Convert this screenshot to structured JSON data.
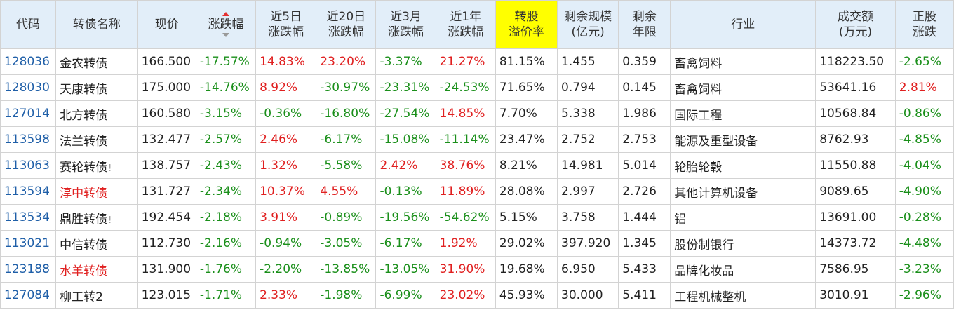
{
  "colors": {
    "header_bg": "#e2eef9",
    "highlight": "#ffff00",
    "up": "#e02020",
    "down": "#1a8f1a",
    "code": "#1f5fa8"
  },
  "headers": {
    "code": "代码",
    "name": "转债名称",
    "price": "现价",
    "change": "涨跌幅",
    "d5_line1": "近5日",
    "d5_line2": "涨跌幅",
    "d20_line1": "近20日",
    "d20_line2": "涨跌幅",
    "m3_line1": "近3月",
    "m3_line2": "涨跌幅",
    "y1_line1": "近1年",
    "y1_line2": "涨跌幅",
    "premium_line1": "转股",
    "premium_line2": "溢价率",
    "scale_line1": "剩余规模",
    "scale_line2": "(亿元)",
    "term_line1": "剩余",
    "term_line2": "年限",
    "industry": "行业",
    "volume_line1": "成交额",
    "volume_line2": "(万元)",
    "stock_line1": "正股",
    "stock_line2": "涨跌"
  },
  "sort": {
    "column": "涨跌幅",
    "icon": "sort-arrows-icon"
  },
  "rows": [
    {
      "code": "128036",
      "name": "金农转债",
      "flag": "",
      "price": "166.500",
      "change": "-17.57%",
      "d5": "14.83%",
      "d20": "23.20%",
      "m3": "-3.37%",
      "y1": "21.27%",
      "premium": "81.15%",
      "scale": "1.455",
      "term": "0.359",
      "industry": "畜禽饲料",
      "volume": "118223.50",
      "stock": "-2.65%"
    },
    {
      "code": "128030",
      "name": "天康转债",
      "flag": "",
      "price": "175.000",
      "change": "-14.76%",
      "d5": "8.92%",
      "d20": "-30.97%",
      "m3": "-23.31%",
      "y1": "-24.53%",
      "premium": "71.65%",
      "scale": "0.794",
      "term": "0.145",
      "industry": "畜禽饲料",
      "volume": "53641.16",
      "stock": "2.81%"
    },
    {
      "code": "127014",
      "name": "北方转债",
      "flag": "",
      "price": "160.580",
      "change": "-3.15%",
      "d5": "-0.36%",
      "d20": "-16.80%",
      "m3": "-27.54%",
      "y1": "14.85%",
      "premium": "7.70%",
      "scale": "5.338",
      "term": "1.986",
      "industry": "国际工程",
      "volume": "10568.84",
      "stock": "-0.86%"
    },
    {
      "code": "113598",
      "name": "法兰转债",
      "flag": "",
      "price": "132.477",
      "change": "-2.57%",
      "d5": "2.46%",
      "d20": "-6.17%",
      "m3": "-15.08%",
      "y1": "-11.14%",
      "premium": "23.47%",
      "scale": "2.752",
      "term": "2.753",
      "industry": "能源及重型设备",
      "volume": "8762.93",
      "stock": "-4.85%"
    },
    {
      "code": "113063",
      "name": "赛轮转债",
      "flag": "!",
      "price": "138.757",
      "change": "-2.43%",
      "d5": "1.32%",
      "d20": "-5.58%",
      "m3": "2.42%",
      "y1": "38.76%",
      "premium": "8.21%",
      "scale": "14.981",
      "term": "5.014",
      "industry": "轮胎轮毂",
      "volume": "11550.88",
      "stock": "-4.04%"
    },
    {
      "code": "113594",
      "name": "淳中转债",
      "flag": "",
      "price": "131.727",
      "change": "-2.34%",
      "d5": "10.37%",
      "d20": "4.55%",
      "m3": "-0.13%",
      "y1": "11.89%",
      "premium": "28.08%",
      "scale": "2.997",
      "term": "2.726",
      "industry": "其他计算机设备",
      "volume": "9089.65",
      "stock": "-4.90%"
    },
    {
      "code": "113534",
      "name": "鼎胜转债",
      "flag": "!",
      "price": "192.454",
      "change": "-2.18%",
      "d5": "3.91%",
      "d20": "-0.89%",
      "m3": "-19.56%",
      "y1": "-54.62%",
      "premium": "5.15%",
      "scale": "3.758",
      "term": "1.444",
      "industry": "铝",
      "volume": "13691.00",
      "stock": "-0.28%"
    },
    {
      "code": "113021",
      "name": "中信转债",
      "flag": "",
      "price": "112.730",
      "change": "-2.16%",
      "d5": "-0.94%",
      "d20": "-3.05%",
      "m3": "-6.17%",
      "y1": "1.92%",
      "premium": "29.02%",
      "scale": "397.920",
      "term": "1.345",
      "industry": "股份制银行",
      "volume": "14373.72",
      "stock": "-4.48%"
    },
    {
      "code": "123188",
      "name": "水羊转债",
      "flag": "",
      "price": "131.900",
      "change": "-1.76%",
      "d5": "-2.20%",
      "d20": "-13.85%",
      "m3": "-13.05%",
      "y1": "31.90%",
      "premium": "19.68%",
      "scale": "6.950",
      "term": "5.433",
      "industry": "品牌化妆品",
      "volume": "7586.95",
      "stock": "-3.23%"
    },
    {
      "code": "127084",
      "name": "柳工转2",
      "flag": "",
      "price": "123.015",
      "change": "-1.71%",
      "d5": "2.33%",
      "d20": "-1.98%",
      "m3": "-6.99%",
      "y1": "23.02%",
      "premium": "45.93%",
      "scale": "30.000",
      "term": "5.411",
      "industry": "工程机械整机",
      "volume": "3010.91",
      "stock": "-2.96%"
    }
  ]
}
